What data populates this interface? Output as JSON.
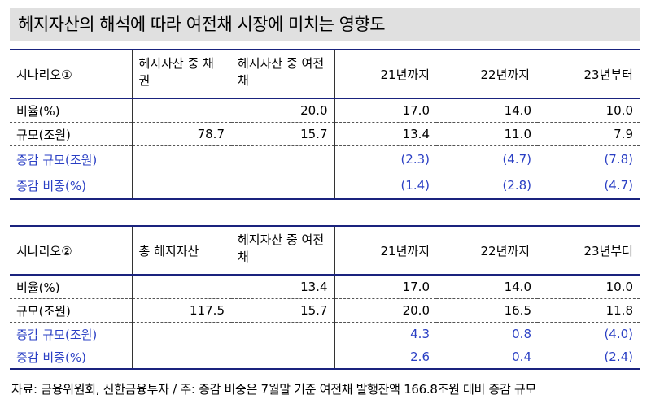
{
  "title": "헤지자산의 해석에 따라 여전채 시장에 미치는 영향도",
  "table1": {
    "header": [
      "시나리오①",
      "헤지자산 중 채권",
      "헤지자산 중 여전채",
      "21년까지",
      "22년까지",
      "23년부터"
    ],
    "rows": [
      [
        "비율(%)",
        "",
        "20.0",
        "17.0",
        "14.0",
        "10.0"
      ],
      [
        "규모(조원)",
        "78.7",
        "15.7",
        "13.4",
        "11.0",
        "7.9"
      ],
      [
        "증감 규모(조원)",
        "",
        "",
        "(2.3)",
        "(4.7)",
        "(7.8)"
      ],
      [
        "증감 비중(%)",
        "",
        "",
        "(1.4)",
        "(2.8)",
        "(4.7)"
      ]
    ]
  },
  "table2": {
    "header": [
      "시나리오②",
      "총 헤지자산",
      "헤지자산 중 여전채",
      "21년까지",
      "22년까지",
      "23년부터"
    ],
    "rows": [
      [
        "비율(%)",
        "",
        "13.4",
        "17.0",
        "14.0",
        "10.0"
      ],
      [
        "규모(조원)",
        "117.5",
        "15.7",
        "20.0",
        "16.5",
        "11.8"
      ],
      [
        "증감 규모(조원)",
        "",
        "",
        "4.3",
        "0.8",
        "(4.0)"
      ],
      [
        "증감 비중(%)",
        "",
        "",
        "2.6",
        "0.4",
        "(2.4)"
      ]
    ]
  },
  "source": "자료: 금융위원회, 신한금융투자 / 주: 증감 비중은 7월말 기준 여전채 발행잔액 166.8조원 대비 증감 규모",
  "colors": {
    "accent_blue": "#2a3fc4",
    "rule": "#1a237e",
    "title_bg": "#e0e0e0"
  }
}
